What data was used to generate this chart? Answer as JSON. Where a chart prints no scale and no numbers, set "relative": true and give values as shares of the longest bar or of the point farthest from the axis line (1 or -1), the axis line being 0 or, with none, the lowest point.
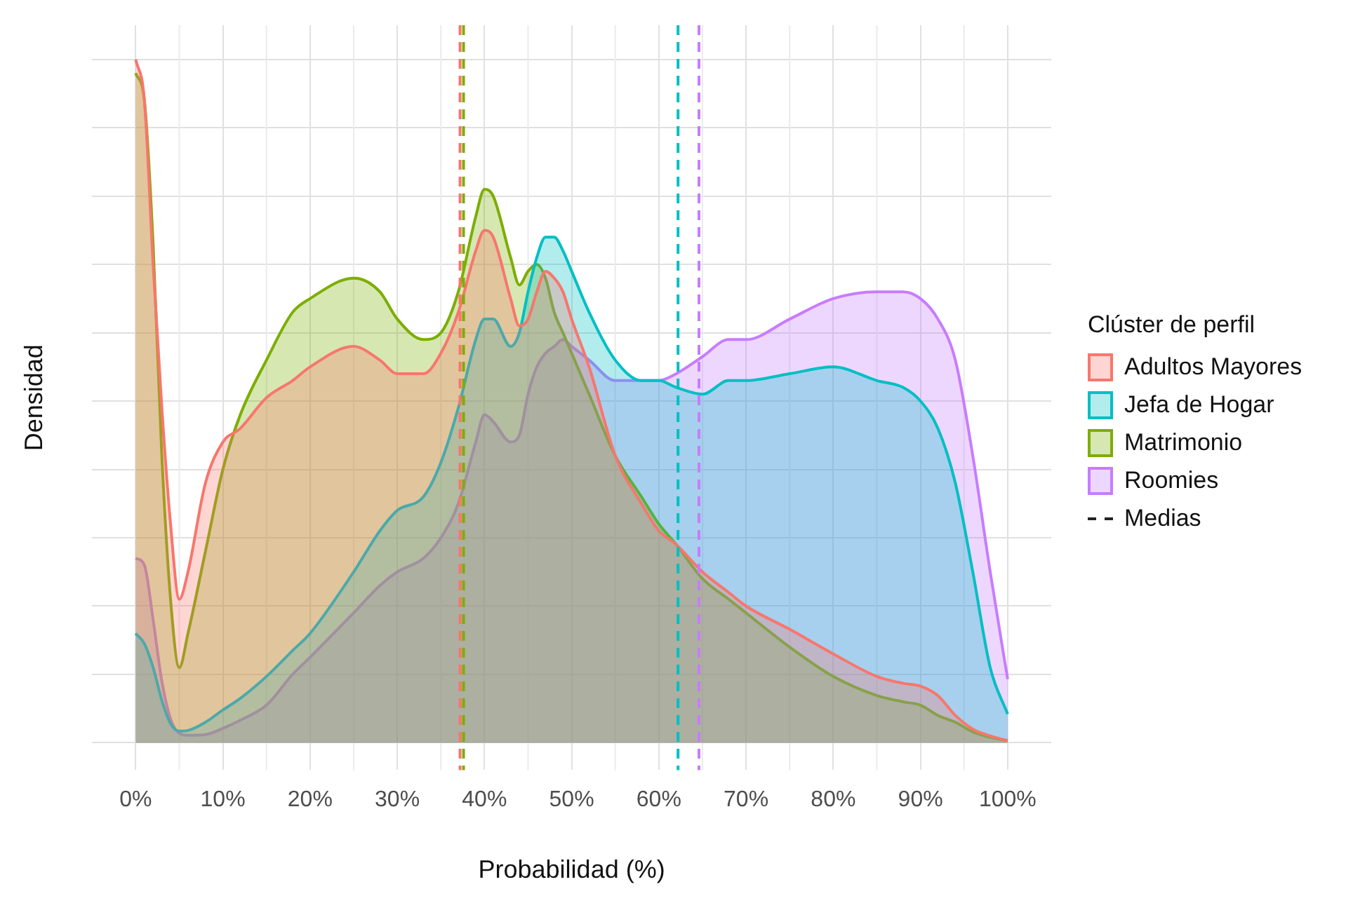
{
  "chart_data": {
    "type": "area",
    "relative": true,
    "xlabel": "Probabilidad (%)",
    "ylabel": "Densidad",
    "legend_title": "Clúster de perfil",
    "legend": "right",
    "grid": true,
    "x": [
      0,
      1,
      2,
      3,
      4,
      5,
      6,
      8,
      10,
      12,
      15,
      18,
      20,
      25,
      28,
      30,
      33,
      35,
      37,
      39,
      40,
      41,
      43,
      44,
      45,
      46,
      47,
      48,
      49,
      50,
      52,
      55,
      58,
      60,
      62,
      65,
      68,
      70,
      75,
      80,
      85,
      88,
      90,
      92,
      94,
      96,
      98,
      100
    ],
    "xlim": [
      -5,
      105
    ],
    "xticks": [
      {
        "value": 0,
        "label": "0%"
      },
      {
        "value": 10,
        "label": "10%"
      },
      {
        "value": 20,
        "label": "20%"
      },
      {
        "value": 30,
        "label": "30%"
      },
      {
        "value": 40,
        "label": "40%"
      },
      {
        "value": 50,
        "label": "50%"
      },
      {
        "value": 60,
        "label": "60%"
      },
      {
        "value": 70,
        "label": "70%"
      },
      {
        "value": 80,
        "label": "80%"
      },
      {
        "value": 90,
        "label": "90%"
      },
      {
        "value": 100,
        "label": "100%"
      }
    ],
    "series": [
      {
        "name": "Adultos Mayores",
        "color": "#f8766d",
        "values": [
          1.0,
          0.94,
          0.7,
          0.49,
          0.32,
          0.21,
          0.25,
          0.38,
          0.44,
          0.46,
          0.505,
          0.53,
          0.55,
          0.58,
          0.56,
          0.54,
          0.54,
          0.57,
          0.63,
          0.72,
          0.75,
          0.74,
          0.65,
          0.61,
          0.62,
          0.66,
          0.69,
          0.68,
          0.66,
          0.62,
          0.55,
          0.42,
          0.35,
          0.31,
          0.29,
          0.25,
          0.22,
          0.2,
          0.166,
          0.13,
          0.097,
          0.087,
          0.083,
          0.069,
          0.04,
          0.02,
          0.01,
          0.003
        ]
      },
      {
        "name": "Jefa de Hogar",
        "color": "#00bfc4",
        "values": [
          0.16,
          0.145,
          0.11,
          0.062,
          0.028,
          0.017,
          0.018,
          0.03,
          0.048,
          0.065,
          0.097,
          0.135,
          0.16,
          0.25,
          0.31,
          0.34,
          0.36,
          0.41,
          0.49,
          0.59,
          0.62,
          0.62,
          0.58,
          0.6,
          0.66,
          0.71,
          0.74,
          0.74,
          0.72,
          0.69,
          0.63,
          0.56,
          0.53,
          0.53,
          0.52,
          0.51,
          0.53,
          0.53,
          0.54,
          0.55,
          0.53,
          0.52,
          0.5,
          0.46,
          0.38,
          0.25,
          0.11,
          0.042
        ]
      },
      {
        "name": "Matrimonio",
        "color": "#7cae00",
        "values": [
          0.98,
          0.94,
          0.73,
          0.42,
          0.21,
          0.11,
          0.16,
          0.28,
          0.4,
          0.48,
          0.56,
          0.63,
          0.65,
          0.68,
          0.66,
          0.62,
          0.59,
          0.6,
          0.66,
          0.77,
          0.81,
          0.8,
          0.71,
          0.67,
          0.69,
          0.7,
          0.68,
          0.63,
          0.6,
          0.57,
          0.51,
          0.42,
          0.36,
          0.32,
          0.29,
          0.24,
          0.21,
          0.19,
          0.14,
          0.097,
          0.069,
          0.06,
          0.055,
          0.04,
          0.03,
          0.016,
          0.008,
          0.003
        ]
      },
      {
        "name": "Roomies",
        "color": "#c77cff",
        "values": [
          0.27,
          0.26,
          0.18,
          0.09,
          0.035,
          0.014,
          0.011,
          0.012,
          0.021,
          0.033,
          0.055,
          0.1,
          0.125,
          0.19,
          0.23,
          0.25,
          0.27,
          0.3,
          0.35,
          0.44,
          0.48,
          0.47,
          0.44,
          0.45,
          0.51,
          0.55,
          0.57,
          0.58,
          0.59,
          0.58,
          0.56,
          0.53,
          0.53,
          0.53,
          0.54,
          0.565,
          0.59,
          0.59,
          0.62,
          0.65,
          0.66,
          0.66,
          0.65,
          0.62,
          0.56,
          0.42,
          0.25,
          0.093
        ]
      }
    ],
    "ref_lines": [
      {
        "axis": "x",
        "value": 37.2,
        "color": "#f8766d",
        "line_style": "dashed"
      },
      {
        "axis": "x",
        "value": 37.6,
        "color": "#7cae00",
        "line_style": "dashed"
      },
      {
        "axis": "x",
        "value": 62.2,
        "color": "#00bfc4",
        "line_style": "dashed"
      },
      {
        "axis": "x",
        "value": 64.6,
        "color": "#c77cff",
        "line_style": "dashed"
      }
    ],
    "annotations": [
      "Medias"
    ]
  }
}
